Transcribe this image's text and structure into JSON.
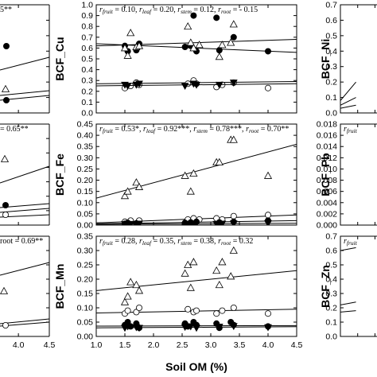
{
  "xlabel": "Soil OM (%)",
  "chart_data": [
    {
      "type": "scatter",
      "ylabel": "BCF_Cu",
      "xlim": [
        1.0,
        4.5
      ],
      "ylim": [
        0,
        1.0
      ],
      "yticks": [
        "0.0",
        "0.1",
        "0.2",
        "0.3",
        "0.4",
        "0.5",
        "0.6",
        "0.7",
        "0.8",
        "0.9",
        "1.0"
      ],
      "annotation": [
        {
          "text": "r"
        },
        {
          "sub": "fruit"
        },
        {
          "text": " = 0.10, "
        },
        {
          "text": "r"
        },
        {
          "sub": "leaf"
        },
        {
          "text": " = 0.20, "
        },
        {
          "text": "r"
        },
        {
          "sub": "stem"
        },
        {
          "text": " = 0.12, "
        },
        {
          "text": "r"
        },
        {
          "sub": "root"
        },
        {
          "text": " = - 0.15"
        }
      ],
      "series": [
        {
          "marker": "circle-filled",
          "fit": [
            [
              1.0,
              0.64
            ],
            [
              4.5,
              0.56
            ]
          ],
          "x": [
            1.5,
            1.55,
            1.7,
            1.75,
            2.55,
            2.65,
            2.7,
            2.75,
            3.1,
            3.15,
            3.4,
            4.0
          ],
          "y": [
            0.62,
            0.57,
            0.58,
            0.64,
            0.61,
            0.62,
            0.9,
            0.57,
            0.88,
            0.58,
            0.7,
            0.57
          ]
        },
        {
          "marker": "triangle-open",
          "fit": [
            [
              1.0,
              0.62
            ],
            [
              4.5,
              0.68
            ]
          ],
          "x": [
            1.5,
            1.55,
            1.6,
            1.7,
            1.75,
            2.6,
            2.65,
            2.7,
            2.8,
            3.15,
            3.2,
            3.35,
            3.4
          ],
          "y": [
            0.6,
            0.53,
            0.74,
            0.61,
            0.62,
            0.8,
            0.65,
            0.6,
            0.63,
            0.52,
            0.63,
            0.65,
            0.82
          ]
        },
        {
          "marker": "circle-open",
          "fit": [
            [
              1.0,
              0.27
            ],
            [
              4.5,
              0.29
            ]
          ],
          "x": [
            1.5,
            1.6,
            1.7,
            1.75,
            2.6,
            2.7,
            2.75,
            3.1,
            3.2,
            3.4,
            4.0
          ],
          "y": [
            0.23,
            0.25,
            0.28,
            0.26,
            0.27,
            0.3,
            0.27,
            0.24,
            0.26,
            0.28,
            0.23
          ]
        },
        {
          "marker": "triangle-down-filled",
          "fit": [
            [
              1.0,
              0.25
            ],
            [
              4.5,
              0.27
            ]
          ],
          "x": [
            1.5,
            1.55,
            1.7,
            1.75,
            2.55,
            2.7,
            2.75,
            3.15,
            3.4
          ],
          "y": [
            0.26,
            0.25,
            0.26,
            0.27,
            0.25,
            0.27,
            0.26,
            0.26,
            0.28
          ]
        }
      ]
    },
    {
      "type": "scatter",
      "ylabel": "BCF_Fe",
      "xlim": [
        1.0,
        4.5
      ],
      "ylim": [
        0,
        0.45
      ],
      "yticks": [
        "0.00",
        "0.05",
        "0.10",
        "0.15",
        "0.20",
        "0.25",
        "0.30",
        "0.35",
        "0.40",
        "0.45"
      ],
      "annotation": [
        {
          "text": "r"
        },
        {
          "sub": "fruit"
        },
        {
          "text": " = 0.53*, "
        },
        {
          "text": "r"
        },
        {
          "sub": "leaf"
        },
        {
          "text": " = 0.92***, "
        },
        {
          "text": "r"
        },
        {
          "sub": "stem"
        },
        {
          "text": " = 0.78***, "
        },
        {
          "text": "r"
        },
        {
          "sub": "root"
        },
        {
          "text": " = 0.70**"
        }
      ],
      "series": [
        {
          "marker": "triangle-open",
          "fit": [
            [
              1.0,
              0.12
            ],
            [
              4.5,
              0.36
            ]
          ],
          "x": [
            1.5,
            1.55,
            1.7,
            1.75,
            2.55,
            2.65,
            2.7,
            3.1,
            3.15,
            3.35,
            3.4,
            4.0
          ],
          "y": [
            0.13,
            0.15,
            0.19,
            0.17,
            0.22,
            0.15,
            0.23,
            0.28,
            0.28,
            0.38,
            0.38,
            0.22
          ]
        },
        {
          "marker": "circle-open",
          "fit": [
            [
              1.0,
              0.01
            ],
            [
              4.5,
              0.045
            ]
          ],
          "x": [
            1.5,
            1.6,
            1.75,
            2.6,
            2.7,
            2.8,
            3.1,
            3.2,
            3.4,
            4.0
          ],
          "y": [
            0.015,
            0.02,
            0.02,
            0.025,
            0.03,
            0.025,
            0.03,
            0.025,
            0.04,
            0.045
          ]
        },
        {
          "marker": "circle-filled",
          "fit": [
            [
              1.0,
              0.006
            ],
            [
              4.5,
              0.02
            ]
          ],
          "x": [
            1.5,
            1.55,
            1.7,
            2.55,
            2.65,
            2.75,
            3.15,
            3.4,
            4.0
          ],
          "y": [
            0.006,
            0.01,
            0.008,
            0.01,
            0.012,
            0.015,
            0.012,
            0.015,
            0.02
          ]
        },
        {
          "marker": "triangle-down-filled",
          "fit": [
            [
              1.0,
              0.004
            ],
            [
              4.5,
              0.008
            ]
          ],
          "x": [
            1.5,
            1.6,
            1.75,
            2.6,
            2.7,
            3.1,
            3.2,
            3.4,
            4.0
          ],
          "y": [
            0.004,
            0.005,
            0.006,
            0.005,
            0.007,
            0.005,
            0.006,
            0.007,
            0.008
          ]
        }
      ]
    },
    {
      "type": "scatter",
      "ylabel": "BCF_Mn",
      "xlim": [
        1.0,
        4.5
      ],
      "ylim": [
        0,
        0.35
      ],
      "yticks": [
        "0.00",
        "0.05",
        "0.10",
        "0.15",
        "0.20",
        "0.25",
        "0.30",
        "0.35"
      ],
      "annotation": [
        {
          "text": "r"
        },
        {
          "sub": "fruit"
        },
        {
          "text": " = 0.28, "
        },
        {
          "text": "r"
        },
        {
          "sub": "leaf"
        },
        {
          "text": " = 0.35, "
        },
        {
          "text": "r"
        },
        {
          "sub": "stem"
        },
        {
          "text": " = 0.38, "
        },
        {
          "text": "r"
        },
        {
          "sub": "root"
        },
        {
          "text": " = 0.32"
        }
      ],
      "series": [
        {
          "marker": "triangle-open",
          "fit": [
            [
              1.0,
              0.16
            ],
            [
              4.5,
              0.23
            ]
          ],
          "x": [
            1.5,
            1.55,
            1.6,
            1.7,
            1.75,
            2.55,
            2.6,
            2.65,
            2.7,
            3.1,
            3.15,
            3.2,
            3.35,
            3.4
          ],
          "y": [
            0.12,
            0.14,
            0.19,
            0.18,
            0.16,
            0.22,
            0.25,
            0.17,
            0.26,
            0.23,
            0.18,
            0.26,
            0.21,
            0.3
          ]
        },
        {
          "marker": "circle-open",
          "fit": [
            [
              1.0,
              0.082
            ],
            [
              4.5,
              0.095
            ]
          ],
          "x": [
            1.5,
            1.55,
            1.7,
            1.75,
            2.6,
            2.7,
            2.75,
            3.1,
            3.2,
            3.4,
            4.0
          ],
          "y": [
            0.08,
            0.09,
            0.085,
            0.1,
            0.095,
            0.085,
            0.09,
            0.08,
            0.09,
            0.1,
            0.08
          ]
        },
        {
          "marker": "circle-filled",
          "fit": [
            [
              1.0,
              0.036
            ],
            [
              4.5,
              0.038
            ]
          ],
          "x": [
            1.5,
            1.55,
            1.6,
            1.7,
            1.75,
            2.55,
            2.6,
            2.7,
            2.75,
            3.1,
            3.15,
            3.35,
            3.4,
            4.0
          ],
          "y": [
            0.04,
            0.05,
            0.035,
            0.045,
            0.03,
            0.045,
            0.035,
            0.05,
            0.04,
            0.045,
            0.03,
            0.05,
            0.04,
            0.035
          ]
        },
        {
          "marker": "triangle-down-filled",
          "fit": [
            [
              1.0,
              0.03
            ],
            [
              4.5,
              0.034
            ]
          ],
          "x": [
            1.5,
            1.55,
            1.7,
            1.75,
            2.55,
            2.65,
            2.75,
            3.15,
            3.4,
            4.0
          ],
          "y": [
            0.03,
            0.035,
            0.032,
            0.03,
            0.033,
            0.035,
            0.03,
            0.034,
            0.036,
            0.032
          ]
        }
      ]
    },
    {
      "type": "scatter",
      "ylabel": "BCF_Ni",
      "xlim": [
        1.0,
        4.5
      ],
      "ylim": [
        0,
        0.7
      ],
      "yticks": [
        "0.0",
        "0.1",
        "0.2",
        "0.3",
        "0.4",
        "0.5",
        "0.6",
        "0.7"
      ],
      "series": [
        {
          "marker": "none",
          "fit": [
            [
              1.0,
              0.08
            ],
            [
              1.45,
              0.2
            ]
          ]
        },
        {
          "marker": "none",
          "fit": [
            [
              1.0,
              0.05
            ],
            [
              1.45,
              0.1
            ]
          ]
        },
        {
          "marker": "none",
          "fit": [
            [
              1.0,
              0.03
            ],
            [
              1.45,
              0.05
            ]
          ]
        }
      ]
    },
    {
      "type": "scatter",
      "ylabel": "BCF_Pb",
      "xlim": [
        1.0,
        4.5
      ],
      "ylim": [
        0,
        0.018
      ],
      "yticks": [
        "0.000",
        "0.002",
        "0.004",
        "0.006",
        "0.008",
        "0.010",
        "0.012",
        "0.014",
        "0.016",
        "0.018"
      ],
      "annotation": [
        {
          "text": "r"
        },
        {
          "sub": "fruit"
        }
      ],
      "series": []
    },
    {
      "type": "scatter",
      "ylabel": "BCF_Zn",
      "xlim": [
        1.0,
        4.5
      ],
      "ylim": [
        0,
        0.7
      ],
      "yticks": [
        "0.0",
        "0.1",
        "0.2",
        "0.3",
        "0.4",
        "0.5",
        "0.6",
        "0.7"
      ],
      "annotation": [
        {
          "text": "r"
        },
        {
          "sub": "fruit"
        }
      ],
      "series": [
        {
          "marker": "none",
          "fit": [
            [
              1.0,
              0.6
            ],
            [
              1.45,
              0.62
            ]
          ]
        },
        {
          "marker": "none",
          "fit": [
            [
              1.0,
              0.22
            ],
            [
              1.45,
              0.24
            ]
          ]
        },
        {
          "marker": "none",
          "fit": [
            [
              1.0,
              0.17
            ],
            [
              1.45,
              0.18
            ]
          ]
        }
      ]
    },
    {
      "type": "scatter",
      "xlim": [
        1.0,
        4.5
      ],
      "xticks": [
        "4.0",
        "4.5"
      ],
      "annotations": [
        [
          {
            "text": "5**"
          }
        ],
        [
          {
            "text": " = 0.65**"
          }
        ],
        [
          {
            "text": "root"
          },
          {
            "text": " = 0.69**"
          }
        ]
      ],
      "series": [
        {
          "marker": "circle-filled",
          "x": [
            4.0
          ],
          "y": [
            0.62
          ]
        },
        {
          "marker": "triangle-open",
          "x": [
            4.0
          ],
          "y": [
            0.2
          ]
        },
        {
          "marker": "circle-filled",
          "x": [
            4.0
          ],
          "y": [
            0.12
          ]
        },
        {
          "marker": "triangle-open",
          "x": [
            3.9
          ],
          "y": [
            0.31
          ]
        },
        {
          "marker": "circle-filled",
          "x": [
            4.0
          ],
          "y": [
            0.09
          ]
        },
        {
          "marker": "circle-open",
          "x": [
            4.0
          ],
          "y": [
            0.05
          ]
        },
        {
          "marker": "triangle-open",
          "x": [
            3.9
          ],
          "y": [
            0.17
          ]
        },
        {
          "marker": "circle-open",
          "x": [
            4.0
          ],
          "y": [
            0.05
          ]
        }
      ]
    }
  ]
}
